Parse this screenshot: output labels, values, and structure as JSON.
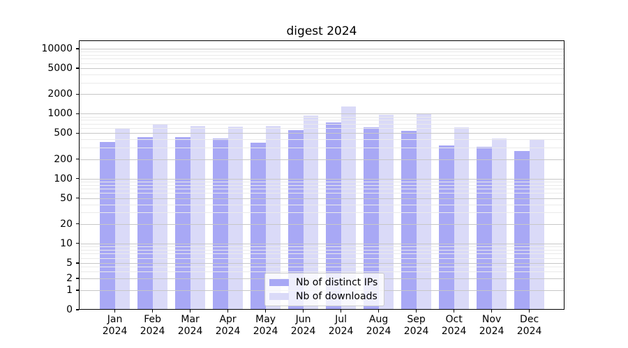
{
  "title": "digest 2024",
  "chart_data": {
    "type": "bar",
    "title": "digest 2024",
    "categories": [
      "Jan",
      "Feb",
      "Mar",
      "Apr",
      "May",
      "Jun",
      "Jul",
      "Aug",
      "Sep",
      "Oct",
      "Nov",
      "Dec"
    ],
    "year": "2024",
    "series": [
      {
        "name": "Nb of distinct IPs",
        "color": "#a8a8f5",
        "values": [
          370,
          430,
          430,
          410,
          355,
          560,
          730,
          610,
          540,
          320,
          310,
          265
        ]
      },
      {
        "name": "Nb of downloads",
        "color": "#dadaf8",
        "values": [
          600,
          690,
          650,
          625,
          645,
          935,
          1300,
          960,
          1000,
          620,
          415,
          405
        ]
      }
    ],
    "yticks": [
      10000,
      5000,
      2000,
      1000,
      500,
      200,
      100,
      50,
      20,
      10,
      5,
      2,
      1,
      0
    ],
    "ylim": [
      0,
      10000
    ],
    "yscale": "symlog",
    "xlabel": "",
    "ylabel": "",
    "grid": true,
    "legend_position": "lower center",
    "colors": {
      "grid_major": "#c7c7c7",
      "grid_minor": "#eaeaea",
      "spine": "#000000",
      "text": "#000000",
      "background": "#ffffff"
    }
  }
}
